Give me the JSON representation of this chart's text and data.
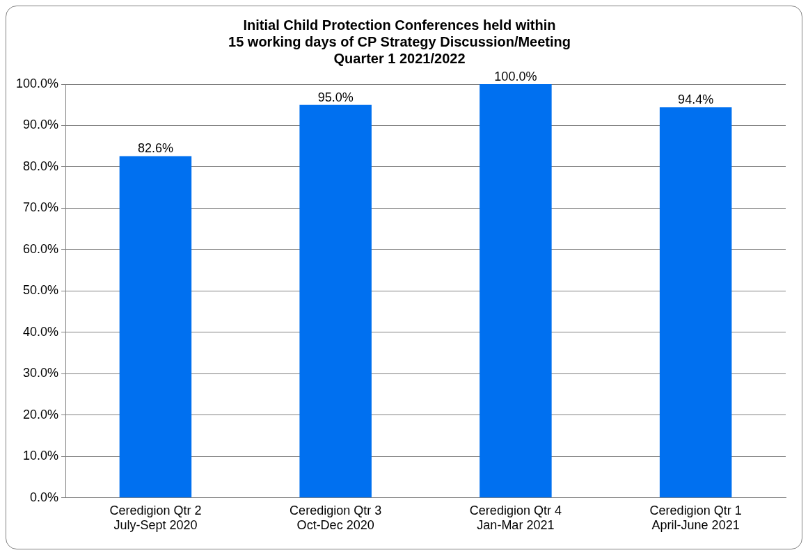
{
  "chart_data": {
    "type": "bar",
    "title": "Initial Child Protection Conferences held within\n15 working days of CP Strategy Discussion/Meeting\nQuarter 1 2021/2022",
    "categories": [
      "Ceredigion Qtr 2\nJuly-Sept 2020",
      "Ceredigion Qtr 3\nOct-Dec 2020",
      "Ceredigion Qtr 4\nJan-Mar 2021",
      "Ceredigion Qtr 1\nApril-June 2021"
    ],
    "values": [
      82.6,
      95.0,
      100.0,
      94.4
    ],
    "value_labels": [
      "82.6%",
      "95.0%",
      "100.0%",
      "94.4%"
    ],
    "color": "#0070f0",
    "ylim": [
      0,
      100
    ],
    "yticks": [
      {
        "value": 0,
        "label": "0.0%"
      },
      {
        "value": 10,
        "label": "10.0%"
      },
      {
        "value": 20,
        "label": "20.0%"
      },
      {
        "value": 30,
        "label": "30.0%"
      },
      {
        "value": 40,
        "label": "40.0%"
      },
      {
        "value": 50,
        "label": "50.0%"
      },
      {
        "value": 60,
        "label": "60.0%"
      },
      {
        "value": 70,
        "label": "70.0%"
      },
      {
        "value": 80,
        "label": "80.0%"
      },
      {
        "value": 90,
        "label": "90.0%"
      },
      {
        "value": 100,
        "label": "100.0%"
      }
    ],
    "grid": "y",
    "legend": false
  }
}
